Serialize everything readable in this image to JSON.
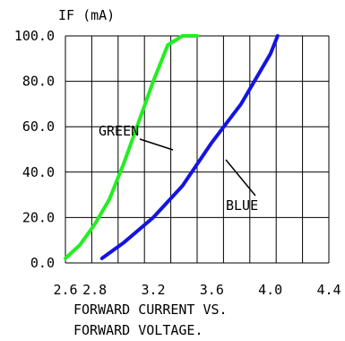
{
  "chart_data": {
    "type": "line",
    "ylabel": "IF (mA)",
    "xlabel_lines": [
      "FORWARD CURRENT VS.",
      "FORWARD VOLTAGE."
    ],
    "xlim": [
      2.6,
      4.4
    ],
    "ylim": [
      0,
      100
    ],
    "x_ticks": [
      2.6,
      2.8,
      3.2,
      3.6,
      4.0,
      4.4
    ],
    "x_tick_labels": [
      "2.6",
      "2.8",
      "3.2",
      "3.6",
      "4.0",
      "4.4"
    ],
    "y_ticks": [
      0,
      20,
      40,
      60,
      80,
      100
    ],
    "y_tick_labels": [
      "0.0",
      "20.0",
      "40.0",
      "60.0",
      "80.0",
      "100.0"
    ],
    "grid": true,
    "series": [
      {
        "name": "GREEN",
        "color": "#22ee22",
        "x": [
          2.6,
          2.7,
          2.8,
          2.9,
          3.0,
          3.1,
          3.2,
          3.3,
          3.4,
          3.5
        ],
        "y": [
          2,
          8,
          17,
          28,
          44,
          62,
          80,
          96,
          100,
          100
        ],
        "label_pos": "upper-left"
      },
      {
        "name": "BLUE",
        "color": "#1414e0",
        "x": [
          2.85,
          3.0,
          3.2,
          3.4,
          3.6,
          3.8,
          4.0,
          4.05
        ],
        "y": [
          2,
          9,
          20,
          34,
          53,
          70,
          92,
          100
        ],
        "label_pos": "lower-right"
      }
    ]
  }
}
